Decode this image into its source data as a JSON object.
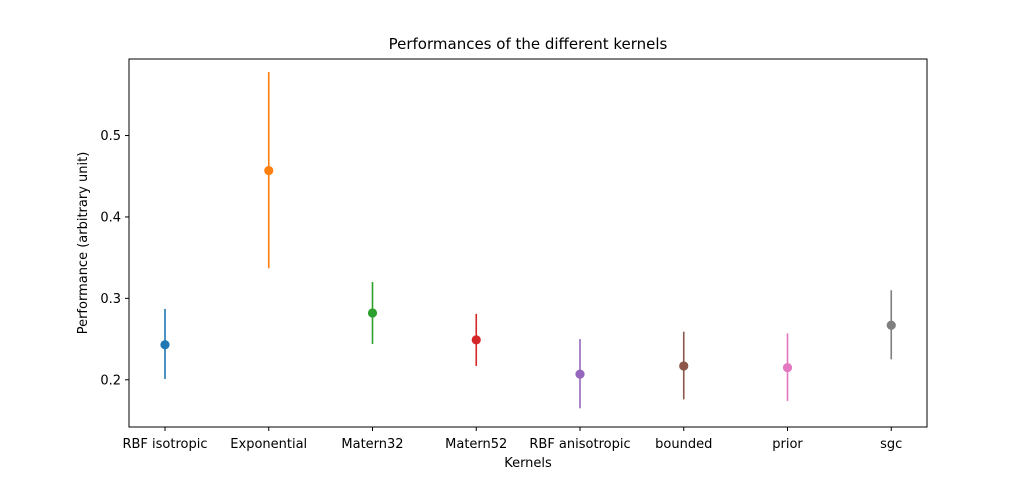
{
  "chart_data": {
    "type": "scatter",
    "title": "Performances of the different kernels",
    "xlabel": "Kernels",
    "ylabel": "Performance (arbitrary unit)",
    "categories": [
      "RBF isotropic",
      "Exponential",
      "Matern32",
      "Matern52",
      "RBF anisotropic",
      "bounded",
      "prior",
      "sgc"
    ],
    "values": [
      0.243,
      0.457,
      0.282,
      0.249,
      0.207,
      0.217,
      0.215,
      0.267
    ],
    "error_low": [
      0.201,
      0.337,
      0.244,
      0.217,
      0.165,
      0.176,
      0.174,
      0.225
    ],
    "error_high": [
      0.287,
      0.578,
      0.32,
      0.281,
      0.25,
      0.259,
      0.257,
      0.31
    ],
    "colors": [
      "#1f77b4",
      "#ff7f0e",
      "#2ca02c",
      "#d62728",
      "#9467bd",
      "#8c564b",
      "#e377c2",
      "#7f7f7f"
    ],
    "ylim": [
      0.142,
      0.594
    ],
    "yticks": [
      0.2,
      0.3,
      0.4,
      0.5
    ],
    "ytick_labels": [
      "0.2",
      "0.3",
      "0.4",
      "0.5"
    ],
    "grid": false,
    "legend": "none"
  }
}
